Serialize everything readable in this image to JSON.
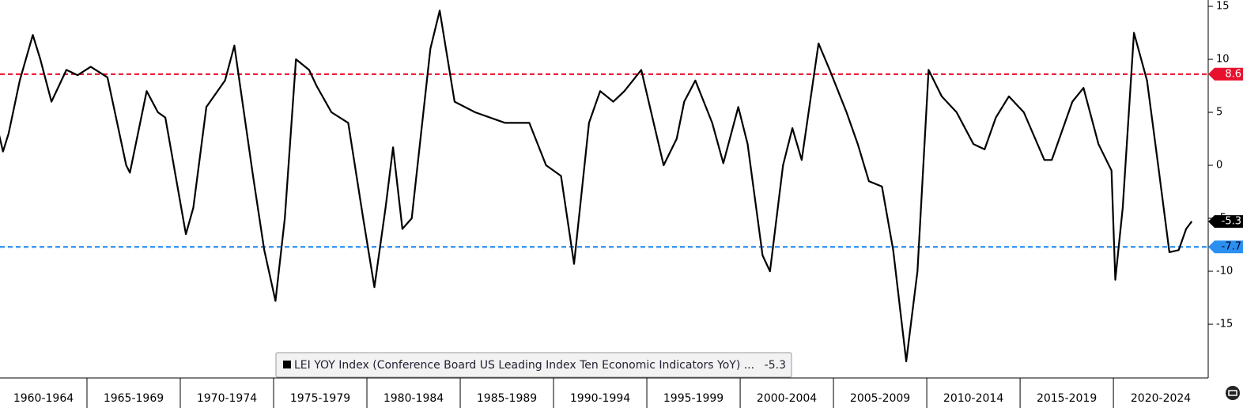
{
  "chart_data": {
    "type": "line",
    "series": [
      {
        "name": "LEI YOY Index (Conference Board US Leading Index Ten Economic Indicators YoY) ...",
        "color": "#000000",
        "x": [
          1960.3,
          1960.5,
          1960.8,
          1961.4,
          1962.1,
          1962.5,
          1963.1,
          1963.9,
          1964.5,
          1965.2,
          1966.1,
          1967.1,
          1967.3,
          1968.2,
          1968.8,
          1969.2,
          1970.3,
          1970.7,
          1971.4,
          1972.4,
          1972.9,
          1973.9,
          1974.5,
          1975.1,
          1975.6,
          1976.2,
          1976.9,
          1977.3,
          1978.1,
          1979.0,
          1979.8,
          1980.4,
          1981.0,
          1981.4,
          1981.9,
          1982.4,
          1983.4,
          1983.9,
          1984.7,
          1985.8,
          1987.4,
          1988.7,
          1989.6,
          1990.4,
          1991.1,
          1991.9,
          1992.5,
          1993.2,
          1993.8,
          1994.7,
          1995.5,
          1995.9,
          1996.6,
          1997.0,
          1997.6,
          1998.5,
          1999.1,
          1999.9,
          2000.4,
          2001.2,
          2001.6,
          2002.3,
          2002.8,
          2003.3,
          2004.2,
          2004.8,
          2005.7,
          2006.3,
          2006.9,
          2007.6,
          2008.2,
          2008.9,
          2009.5,
          2010.1,
          2010.8,
          2011.6,
          2012.5,
          2013.1,
          2013.7,
          2014.4,
          2015.2,
          2016.3,
          2016.7,
          2017.8,
          2018.4,
          2019.2,
          2019.9,
          2020.1,
          2020.5,
          2021.1,
          2021.8,
          2022.4,
          2023.0,
          2023.5,
          2023.9,
          2024.2
        ],
        "values": [
          2.8,
          1.3,
          3,
          8,
          12.3,
          10,
          6,
          9,
          8.5,
          9.3,
          8.3,
          0,
          -0.7,
          7,
          5,
          4.5,
          -6.5,
          -4,
          5.5,
          8,
          11.3,
          -1,
          -8,
          -12.8,
          -5,
          10,
          9,
          7.5,
          5,
          4,
          -5,
          -11.5,
          -4,
          1.7,
          -6,
          -5,
          11,
          14.6,
          6,
          5,
          4,
          4,
          0,
          -1,
          -9.3,
          4,
          7,
          6,
          7,
          9,
          3,
          0,
          2.5,
          6,
          8,
          4,
          0.2,
          5.5,
          2,
          -8.5,
          -10,
          0,
          3.5,
          0.5,
          11.5,
          9,
          5,
          2,
          -1.5,
          -2,
          -8,
          -18.5,
          -10,
          9,
          6.5,
          5,
          2,
          1.5,
          4.5,
          6.5,
          5,
          0.5,
          0.5,
          6,
          7.3,
          2,
          -0.5,
          -10.8,
          -4,
          12.5,
          8,
          0,
          -8.2,
          -8,
          -6,
          -5.3
        ]
      }
    ],
    "xlim": [
      1960.34,
      2025.08
    ],
    "period_starts": [
      1960,
      1965,
      1970,
      1975,
      1980,
      1985,
      1990,
      1995,
      2000,
      2005,
      2010,
      2015,
      2020
    ],
    "period_labels": [
      "1960-1964",
      "1965-1969",
      "1970-1974",
      "1975-1979",
      "1980-1984",
      "1985-1989",
      "1990-1994",
      "1995-1999",
      "2000-2004",
      "2005-2009",
      "2010-2014",
      "2015-2019",
      "2020-2024"
    ],
    "ylim": [
      -20.07,
      15.6
    ],
    "yticks": [
      15,
      10,
      5,
      0,
      -5,
      -10,
      -15
    ],
    "reference_lines": [
      {
        "value": 8.6,
        "color": "#e8112d"
      },
      {
        "value": -7.7,
        "color": "#2b8ff0"
      }
    ],
    "last_value_color": "#000000"
  }
}
